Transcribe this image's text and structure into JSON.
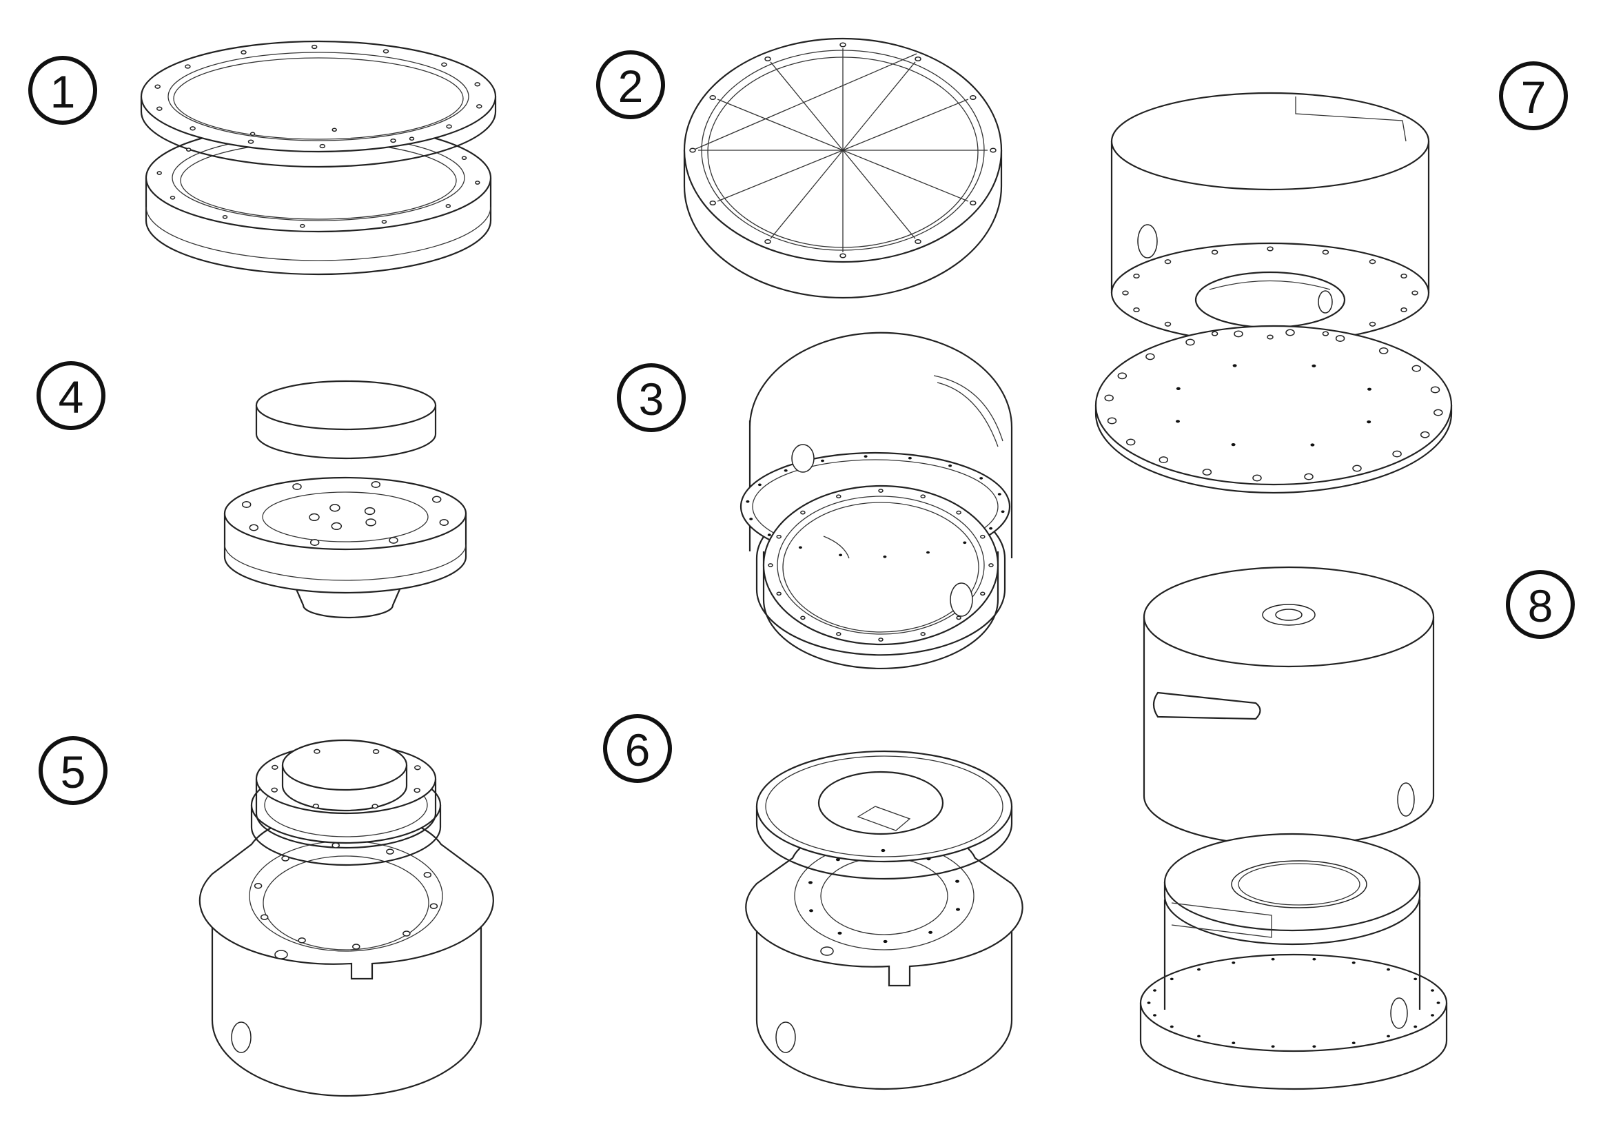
{
  "figure": {
    "callouts": [
      {
        "id": "part-1",
        "number": "1"
      },
      {
        "id": "part-2",
        "number": "2"
      },
      {
        "id": "part-3",
        "number": "3"
      },
      {
        "id": "part-4",
        "number": "4"
      },
      {
        "id": "part-5",
        "number": "5"
      },
      {
        "id": "part-6",
        "number": "6"
      },
      {
        "id": "part-7",
        "number": "7"
      },
      {
        "id": "part-8",
        "number": "8"
      }
    ],
    "colors": {
      "line": "#222222",
      "background": "#ffffff"
    }
  }
}
